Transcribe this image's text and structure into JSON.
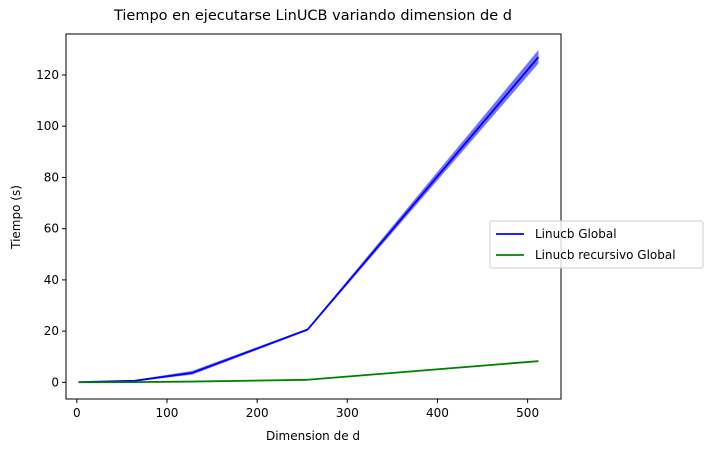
{
  "chart_data": {
    "type": "line",
    "title": "Tiempo en ejecutarse LinUCB variando dimension de d",
    "xlabel": "Dimension de d",
    "ylabel": "Tiempo (s)",
    "xlim": [
      -12,
      537
    ],
    "ylim": [
      -6.5,
      136
    ],
    "xticks": [
      0,
      100,
      200,
      300,
      400,
      500
    ],
    "yticks": [
      0,
      20,
      40,
      60,
      80,
      100,
      120
    ],
    "grid": false,
    "legend_position": "right",
    "x": [
      2,
      64,
      128,
      256,
      512
    ],
    "series": [
      {
        "name": "Linucb Global",
        "color": "#0000ff",
        "values": [
          0.1,
          0.6,
          3.7,
          20.6,
          127.0
        ],
        "band_lower": [
          0.0,
          0.4,
          3.0,
          20.2,
          124.5
        ],
        "band_upper": [
          0.2,
          0.9,
          4.5,
          21.0,
          129.8
        ]
      },
      {
        "name": "Linucb recursivo Global",
        "color": "#008000",
        "values": [
          0.05,
          0.1,
          0.3,
          1.0,
          8.3
        ],
        "band_lower": [
          0.0,
          0.05,
          0.2,
          0.8,
          8.0
        ],
        "band_upper": [
          0.1,
          0.15,
          0.4,
          1.2,
          8.6
        ]
      }
    ]
  }
}
